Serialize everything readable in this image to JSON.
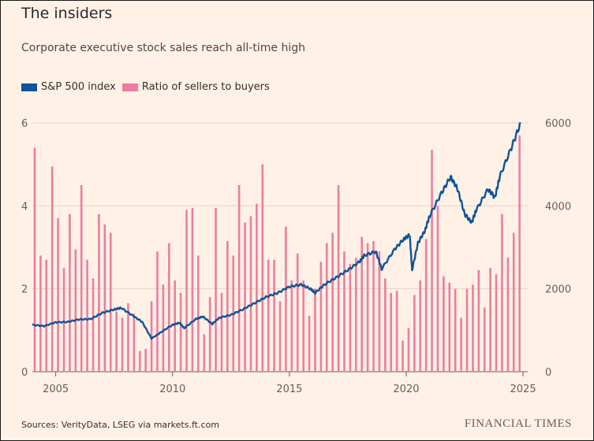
{
  "title": "The insiders",
  "subtitle": "Corporate executive stock sales reach all-time high",
  "source": "Sources: VerityData, LSEG via markets.ft.com",
  "brand": "FINANCIAL TIMES",
  "colors": {
    "background": "#fff1e5",
    "sp500": "#0f5499",
    "ratio": "#ec7ea0",
    "grid": "#e3d5ca",
    "axis": "#66605c"
  },
  "legend": [
    {
      "label": "S&P 500 index",
      "color": "#0f5499"
    },
    {
      "label": "Ratio of sellers to buyers",
      "color": "#ec7ea0"
    }
  ],
  "chart_data": {
    "type": "bar+line",
    "x_range": [
      2004.0,
      2025.2
    ],
    "x_ticks": [
      2005,
      2010,
      2015,
      2020,
      2025
    ],
    "y_left": {
      "range": [
        0,
        6
      ],
      "ticks": [
        0,
        2,
        4,
        6
      ]
    },
    "y_right": {
      "range": [
        0,
        6000
      ],
      "ticks": [
        0,
        2000,
        4000,
        6000
      ]
    },
    "grid": true,
    "legend_position": "top-left",
    "series": [
      {
        "name": "Ratio of sellers to buyers",
        "type": "bar",
        "axis": "left",
        "x": [
          2004.1,
          2004.35,
          2004.6,
          2004.85,
          2005.1,
          2005.35,
          2005.6,
          2005.85,
          2006.1,
          2006.35,
          2006.6,
          2006.85,
          2007.1,
          2007.35,
          2007.6,
          2007.85,
          2008.1,
          2008.35,
          2008.6,
          2008.85,
          2009.1,
          2009.35,
          2009.6,
          2009.85,
          2010.1,
          2010.35,
          2010.6,
          2010.85,
          2011.1,
          2011.35,
          2011.6,
          2011.85,
          2012.1,
          2012.35,
          2012.6,
          2012.85,
          2013.1,
          2013.35,
          2013.6,
          2013.85,
          2014.1,
          2014.35,
          2014.6,
          2014.85,
          2015.1,
          2015.35,
          2015.6,
          2015.85,
          2016.1,
          2016.35,
          2016.6,
          2016.85,
          2017.1,
          2017.35,
          2017.6,
          2017.85,
          2018.1,
          2018.35,
          2018.6,
          2018.85,
          2019.1,
          2019.35,
          2019.6,
          2019.85,
          2020.1,
          2020.35,
          2020.6,
          2020.85,
          2021.1,
          2021.35,
          2021.6,
          2021.85,
          2022.1,
          2022.35,
          2022.6,
          2022.85,
          2023.1,
          2023.35,
          2023.6,
          2023.85,
          2024.1,
          2024.35,
          2024.6,
          2024.85
        ],
        "values": [
          5.4,
          2.8,
          2.7,
          4.95,
          3.7,
          2.5,
          3.8,
          2.95,
          4.5,
          2.7,
          2.25,
          3.8,
          3.55,
          3.35,
          1.45,
          1.3,
          1.65,
          1.4,
          0.5,
          0.55,
          1.7,
          2.9,
          2.1,
          3.1,
          2.2,
          1.9,
          3.9,
          3.95,
          2.8,
          0.9,
          1.8,
          3.95,
          1.9,
          3.15,
          2.8,
          4.5,
          3.6,
          3.75,
          4.05,
          5.0,
          2.7,
          2.7,
          1.7,
          3.5,
          2.2,
          2.85,
          2.2,
          1.35,
          2.0,
          2.65,
          3.1,
          3.35,
          4.5,
          2.9,
          2.6,
          2.75,
          3.25,
          3.1,
          3.15,
          2.9,
          2.25,
          1.9,
          1.95,
          0.75,
          1.05,
          1.85,
          2.2,
          3.2,
          5.35,
          4.0,
          2.3,
          2.15,
          2.0,
          1.3,
          2.0,
          2.1,
          2.45,
          1.55,
          2.5,
          2.35,
          3.8,
          2.75,
          3.35,
          5.7
        ]
      },
      {
        "name": "S&P 500 index",
        "type": "line",
        "axis": "right",
        "x": [
          2004.0,
          2004.5,
          2005.0,
          2005.5,
          2006.0,
          2006.5,
          2007.0,
          2007.5,
          2007.8,
          2008.3,
          2008.7,
          2009.1,
          2009.5,
          2010.0,
          2010.3,
          2010.5,
          2011.0,
          2011.3,
          2011.7,
          2012.0,
          2012.5,
          2013.0,
          2013.5,
          2014.0,
          2014.5,
          2015.0,
          2015.5,
          2015.9,
          2016.1,
          2016.5,
          2017.0,
          2017.5,
          2018.0,
          2018.2,
          2018.7,
          2018.95,
          2019.5,
          2019.9,
          2020.15,
          2020.25,
          2020.5,
          2020.8,
          2021.0,
          2021.5,
          2021.9,
          2022.2,
          2022.5,
          2022.8,
          2023.0,
          2023.5,
          2023.8,
          2024.0,
          2024.5,
          2024.9
        ],
        "values": [
          1130,
          1100,
          1190,
          1200,
          1260,
          1270,
          1420,
          1500,
          1540,
          1350,
          1200,
          800,
          950,
          1130,
          1180,
          1050,
          1270,
          1330,
          1150,
          1300,
          1370,
          1500,
          1650,
          1800,
          1900,
          2050,
          2100,
          2000,
          1900,
          2100,
          2270,
          2450,
          2650,
          2800,
          2900,
          2480,
          2950,
          3200,
          3300,
          2450,
          3100,
          3400,
          3750,
          4300,
          4700,
          4400,
          3800,
          3600,
          3900,
          4400,
          4200,
          4700,
          5400,
          6000
        ]
      }
    ]
  }
}
